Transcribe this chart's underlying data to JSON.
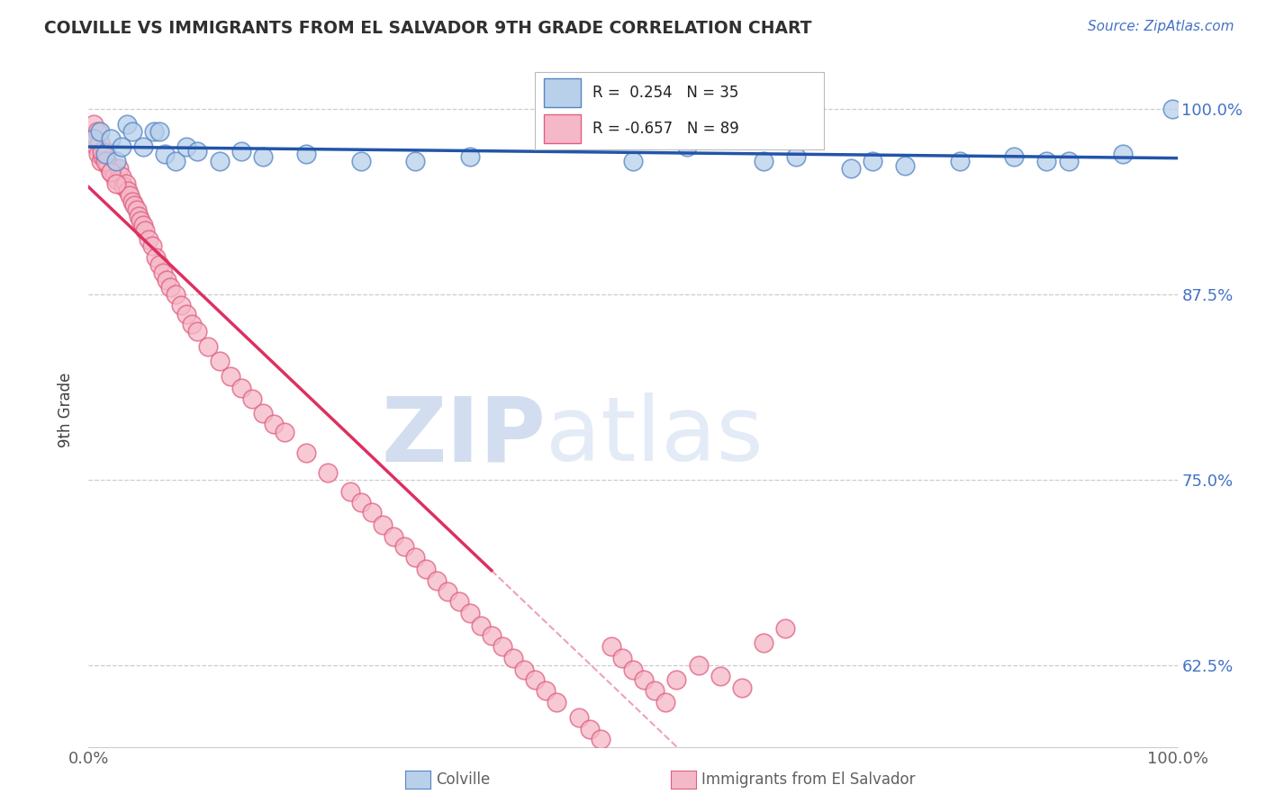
{
  "title": "COLVILLE VS IMMIGRANTS FROM EL SALVADOR 9TH GRADE CORRELATION CHART",
  "source_text": "Source: ZipAtlas.com",
  "ylabel": "9th Grade",
  "xlim": [
    0.0,
    1.0
  ],
  "ylim": [
    0.57,
    1.025
  ],
  "yticks": [
    0.625,
    0.75,
    0.875,
    1.0
  ],
  "ytick_labels": [
    "62.5%",
    "75.0%",
    "87.5%",
    "100.0%"
  ],
  "xtick_labels": [
    "0.0%",
    "100.0%"
  ],
  "xticks": [
    0.0,
    1.0
  ],
  "blue_R": 0.254,
  "blue_N": 35,
  "pink_R": -0.657,
  "pink_N": 89,
  "blue_color": "#b8d0ea",
  "pink_color": "#f5b8c8",
  "blue_edge_color": "#5585c5",
  "pink_edge_color": "#e06080",
  "blue_line_color": "#2255aa",
  "pink_line_color": "#dd3060",
  "watermark_zip": "ZIP",
  "watermark_atlas": "atlas",
  "watermark_color": "#d0dcf0",
  "legend_label_blue": "Colville",
  "legend_label_pink": "Immigrants from El Salvador",
  "blue_scatter_x": [
    0.005,
    0.01,
    0.015,
    0.02,
    0.025,
    0.03,
    0.035,
    0.04,
    0.05,
    0.06,
    0.065,
    0.07,
    0.08,
    0.09,
    0.1,
    0.12,
    0.14,
    0.16,
    0.2,
    0.25,
    0.3,
    0.35,
    0.5,
    0.55,
    0.62,
    0.65,
    0.7,
    0.72,
    0.75,
    0.8,
    0.85,
    0.88,
    0.9,
    0.95,
    0.995
  ],
  "blue_scatter_y": [
    0.98,
    0.985,
    0.97,
    0.98,
    0.965,
    0.975,
    0.99,
    0.985,
    0.975,
    0.985,
    0.985,
    0.97,
    0.965,
    0.975,
    0.972,
    0.965,
    0.972,
    0.968,
    0.97,
    0.965,
    0.965,
    0.968,
    0.965,
    0.975,
    0.965,
    0.968,
    0.96,
    0.965,
    0.962,
    0.965,
    0.968,
    0.965,
    0.965,
    0.97,
    1.0
  ],
  "pink_scatter_x": [
    0.005,
    0.007,
    0.009,
    0.011,
    0.013,
    0.015,
    0.017,
    0.018,
    0.02,
    0.022,
    0.024,
    0.026,
    0.028,
    0.03,
    0.032,
    0.034,
    0.036,
    0.038,
    0.04,
    0.042,
    0.044,
    0.046,
    0.048,
    0.05,
    0.052,
    0.055,
    0.058,
    0.062,
    0.065,
    0.068,
    0.072,
    0.075,
    0.08,
    0.085,
    0.09,
    0.095,
    0.1,
    0.11,
    0.12,
    0.13,
    0.14,
    0.15,
    0.16,
    0.17,
    0.18,
    0.2,
    0.22,
    0.24,
    0.25,
    0.26,
    0.27,
    0.28,
    0.29,
    0.3,
    0.31,
    0.32,
    0.33,
    0.34,
    0.35,
    0.36,
    0.37,
    0.38,
    0.39,
    0.4,
    0.41,
    0.42,
    0.43,
    0.45,
    0.46,
    0.47,
    0.48,
    0.49,
    0.5,
    0.51,
    0.52,
    0.53,
    0.54,
    0.56,
    0.58,
    0.6,
    0.005,
    0.008,
    0.01,
    0.012,
    0.015,
    0.02,
    0.025,
    0.62,
    0.64
  ],
  "pink_scatter_y": [
    0.98,
    0.975,
    0.97,
    0.965,
    0.968,
    0.972,
    0.965,
    0.962,
    0.958,
    0.96,
    0.955,
    0.952,
    0.96,
    0.955,
    0.948,
    0.95,
    0.945,
    0.942,
    0.938,
    0.935,
    0.932,
    0.928,
    0.925,
    0.922,
    0.918,
    0.912,
    0.908,
    0.9,
    0.895,
    0.89,
    0.885,
    0.88,
    0.875,
    0.868,
    0.862,
    0.855,
    0.85,
    0.84,
    0.83,
    0.82,
    0.812,
    0.805,
    0.795,
    0.788,
    0.782,
    0.768,
    0.755,
    0.742,
    0.735,
    0.728,
    0.72,
    0.712,
    0.705,
    0.698,
    0.69,
    0.682,
    0.675,
    0.668,
    0.66,
    0.652,
    0.645,
    0.638,
    0.63,
    0.622,
    0.615,
    0.608,
    0.6,
    0.59,
    0.582,
    0.575,
    0.638,
    0.63,
    0.622,
    0.615,
    0.608,
    0.6,
    0.615,
    0.625,
    0.618,
    0.61,
    0.99,
    0.985,
    0.978,
    0.972,
    0.965,
    0.958,
    0.95,
    0.64,
    0.65
  ],
  "grid_color": "#cccccc",
  "grid_style": "--",
  "background_color": "#ffffff",
  "title_color": "#303030",
  "axis_label_color": "#404040",
  "tick_color": "#606060",
  "right_tick_color": "#4472c4"
}
